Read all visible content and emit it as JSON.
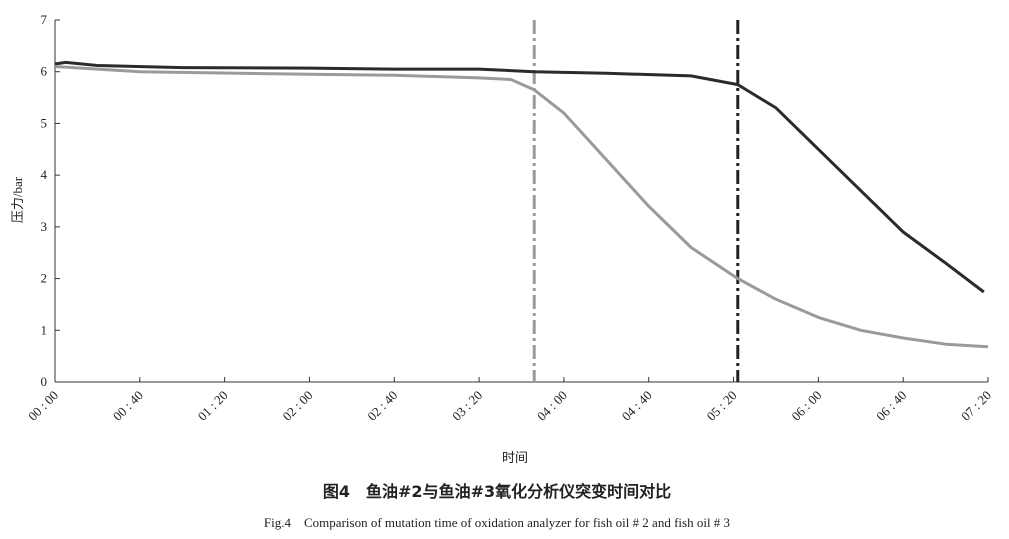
{
  "chart_data": {
    "type": "line",
    "ylabel": "压力/bar",
    "xlabel": "时间",
    "caption": "图4　鱼油#2与鱼油#3氧化分析仪突变时间对比",
    "caption_en": "Fig.4　Comparison of mutation time of oxidation analyzer for fish oil # 2 and fish oil # 3",
    "xlim": [
      0,
      440
    ],
    "ylim": [
      0,
      7
    ],
    "yticks": [
      0,
      1,
      2,
      3,
      4,
      5,
      6,
      7
    ],
    "xticks": [
      {
        "value": 0,
        "label": "00 : 00"
      },
      {
        "value": 40,
        "label": "00 : 40"
      },
      {
        "value": 80,
        "label": "01 : 20"
      },
      {
        "value": 120,
        "label": "02 : 00"
      },
      {
        "value": 160,
        "label": "02 : 40"
      },
      {
        "value": 200,
        "label": "03 : 20"
      },
      {
        "value": 240,
        "label": "04 : 00"
      },
      {
        "value": 280,
        "label": "04 : 40"
      },
      {
        "value": 320,
        "label": "05 : 20"
      },
      {
        "value": 360,
        "label": "06 : 00"
      },
      {
        "value": 400,
        "label": "06 : 40"
      },
      {
        "value": 440,
        "label": "07 : 20"
      }
    ],
    "series": [
      {
        "color": "#2b2b2b",
        "x": [
          0,
          5,
          20,
          60,
          120,
          160,
          200,
          226,
          260,
          300,
          322,
          340,
          360,
          380,
          400,
          420,
          438
        ],
        "values": [
          6.15,
          6.18,
          6.12,
          6.08,
          6.07,
          6.05,
          6.05,
          6.0,
          5.97,
          5.92,
          5.75,
          5.3,
          4.5,
          3.7,
          2.9,
          2.3,
          1.74
        ]
      },
      {
        "color": "#9a9a9a",
        "x": [
          0,
          40,
          120,
          160,
          200,
          215,
          226,
          240,
          260,
          280,
          300,
          322,
          340,
          360,
          380,
          400,
          420,
          440
        ],
        "values": [
          6.1,
          6.0,
          5.95,
          5.93,
          5.88,
          5.85,
          5.65,
          5.2,
          4.3,
          3.4,
          2.6,
          2.0,
          1.6,
          1.25,
          1.0,
          0.85,
          0.73,
          0.68
        ]
      }
    ],
    "vlines": [
      {
        "x": 226,
        "color": "#9a9a9a"
      },
      {
        "x": 322,
        "color": "#222222"
      }
    ]
  }
}
